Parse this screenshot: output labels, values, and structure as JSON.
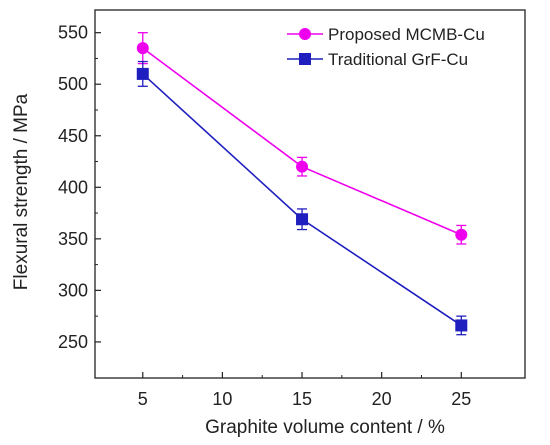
{
  "chart_data": {
    "type": "line",
    "xlabel": "Graphite volume content / %",
    "ylabel": "Flexural strength / MPa",
    "xlim": [
      2,
      29
    ],
    "ylim": [
      215,
      572
    ],
    "x_ticks": [
      5,
      10,
      15,
      20,
      25
    ],
    "y_ticks": [
      250,
      300,
      350,
      400,
      450,
      500,
      550
    ],
    "grid": false,
    "legend_position": "top-right",
    "series": [
      {
        "name": "Proposed MCMB-Cu",
        "color": "#ee00ee",
        "marker": "circle",
        "x": [
          5,
          15,
          25
        ],
        "y": [
          535,
          420,
          354
        ],
        "error": [
          15,
          9,
          9
        ]
      },
      {
        "name": "Traditional GrF-Cu",
        "color": "#1f1fbf",
        "marker": "square",
        "x": [
          5,
          15,
          25
        ],
        "y": [
          510,
          369,
          266
        ],
        "error": [
          12,
          10,
          9
        ]
      }
    ]
  }
}
